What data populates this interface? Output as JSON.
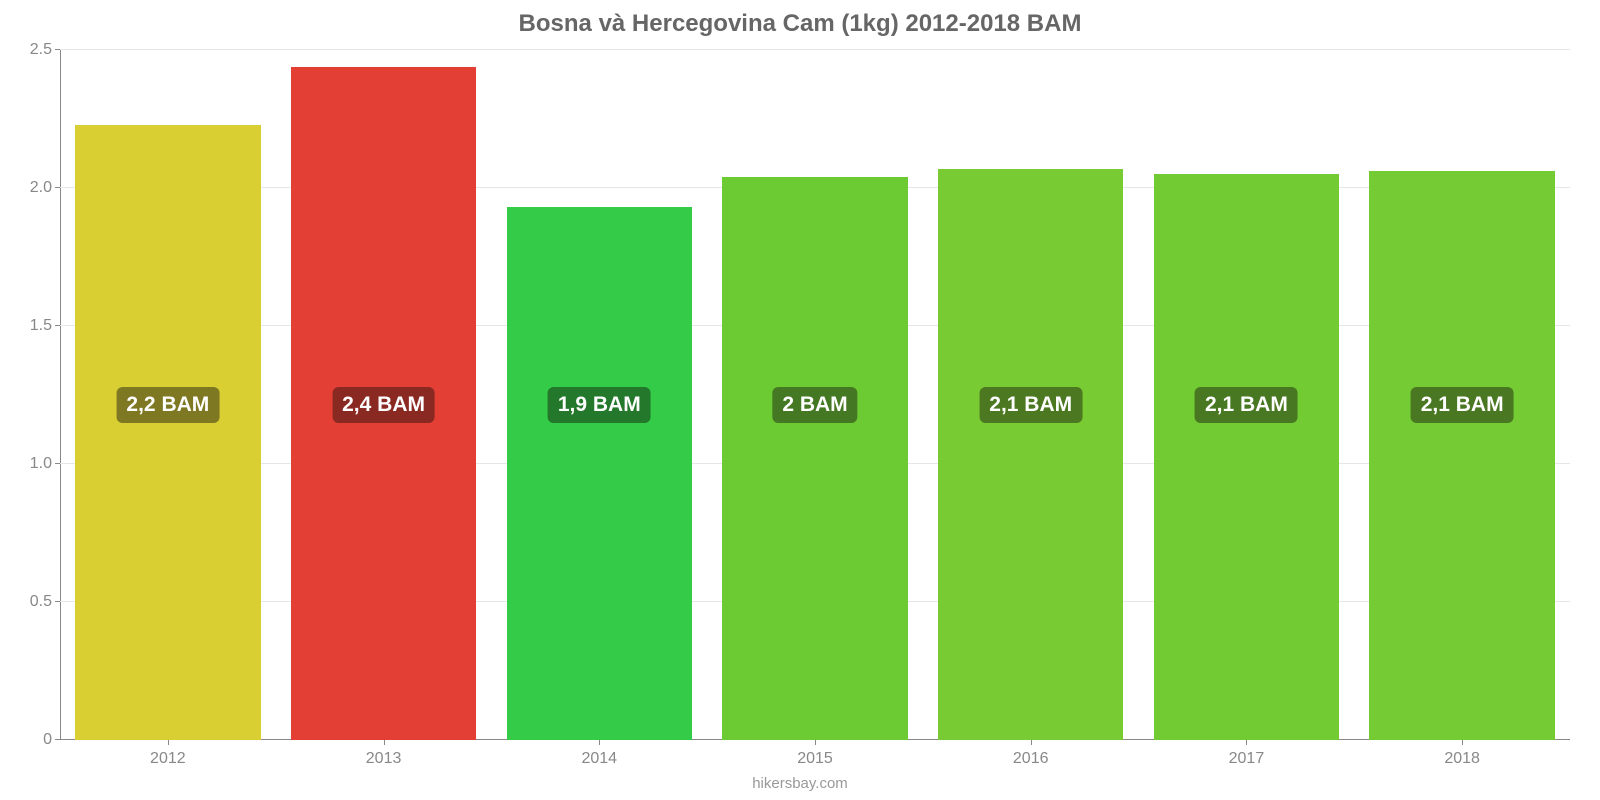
{
  "chart": {
    "type": "bar",
    "title": "Bosna và Hercegovina Cam (1kg) 2012-2018 BAM",
    "title_color": "#666666",
    "title_fontsize": 24,
    "categories": [
      "2012",
      "2013",
      "2014",
      "2015",
      "2016",
      "2017",
      "2018"
    ],
    "values": [
      2.23,
      2.44,
      1.93,
      2.04,
      2.07,
      2.05,
      2.06
    ],
    "value_labels": [
      "2,2 BAM",
      "2,4 BAM",
      "1,9 BAM",
      "2 BAM",
      "2,1 BAM",
      "2,1 BAM",
      "2,1 BAM"
    ],
    "bar_colors": [
      "#d9ce32",
      "#e33f34",
      "#33cb47",
      "#6ccb33",
      "#78cb33",
      "#72cb33",
      "#75cb33"
    ],
    "badge_bg_colors": [
      "#7e7822",
      "#8a2921",
      "#23782c",
      "#457822",
      "#4c7822",
      "#487822",
      "#4a7822"
    ],
    "ylim": [
      0,
      2.5
    ],
    "yticks": [
      0,
      0.5,
      1.0,
      1.5,
      2.0,
      2.5
    ],
    "ytick_labels": [
      "0",
      "0.5",
      "1.0",
      "1.5",
      "2.0",
      "2.5"
    ],
    "grid_color": "#e6e6e6",
    "axis_color": "#888888",
    "tick_label_color": "#888888",
    "tick_fontsize": 16,
    "background_color": "#ffffff",
    "bar_width_ratio": 0.86,
    "badge_y_value": 1.15,
    "attribution": "hikersbay.com",
    "attribution_color": "#999999"
  }
}
